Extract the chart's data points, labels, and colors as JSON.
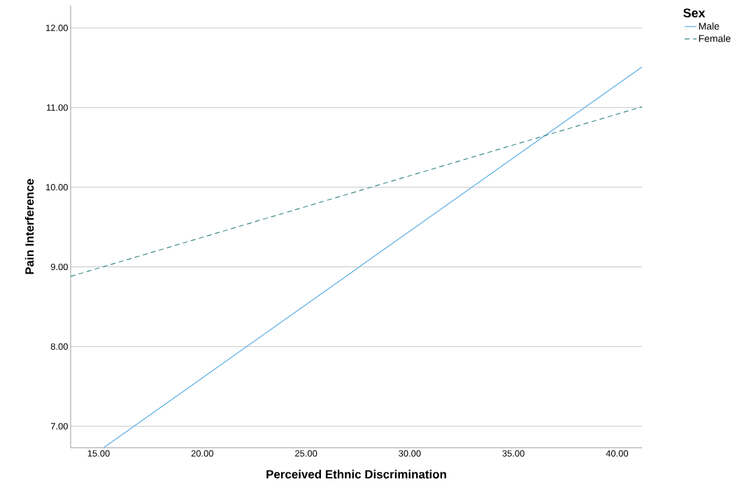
{
  "chart_data": {
    "type": "line",
    "xlabel": "Perceived Ethnic Discrimination",
    "ylabel": "Pain Interference",
    "legend_title": "Sex",
    "legend": "top right",
    "xlim": [
      13.65,
      41.2
    ],
    "ylim": [
      6.73,
      12.28
    ],
    "xticks": [
      {
        "value": 15,
        "label": "15.00"
      },
      {
        "value": 20,
        "label": "20.00"
      },
      {
        "value": 25,
        "label": "25.00"
      },
      {
        "value": 30,
        "label": "30.00"
      },
      {
        "value": 35,
        "label": "35.00"
      },
      {
        "value": 40,
        "label": "40.00"
      }
    ],
    "yticks": [
      {
        "value": 7,
        "label": "7.00"
      },
      {
        "value": 8,
        "label": "8.00"
      },
      {
        "value": 9,
        "label": "9.00"
      },
      {
        "value": 10,
        "label": "10.00"
      },
      {
        "value": 11,
        "label": "11.00"
      },
      {
        "value": 12,
        "label": "12.00"
      }
    ],
    "grid": "y",
    "marker": "none",
    "series": [
      {
        "name": "Male",
        "color": "#5aaee6",
        "line_style": "solid",
        "x": [
          15.24,
          41.2
        ],
        "values": [
          6.73,
          11.51
        ]
      },
      {
        "name": "Female",
        "color": "#3a8a8a",
        "line_style": "dashed",
        "x": [
          13.65,
          41.2
        ],
        "values": [
          8.88,
          11.01
        ]
      }
    ]
  }
}
